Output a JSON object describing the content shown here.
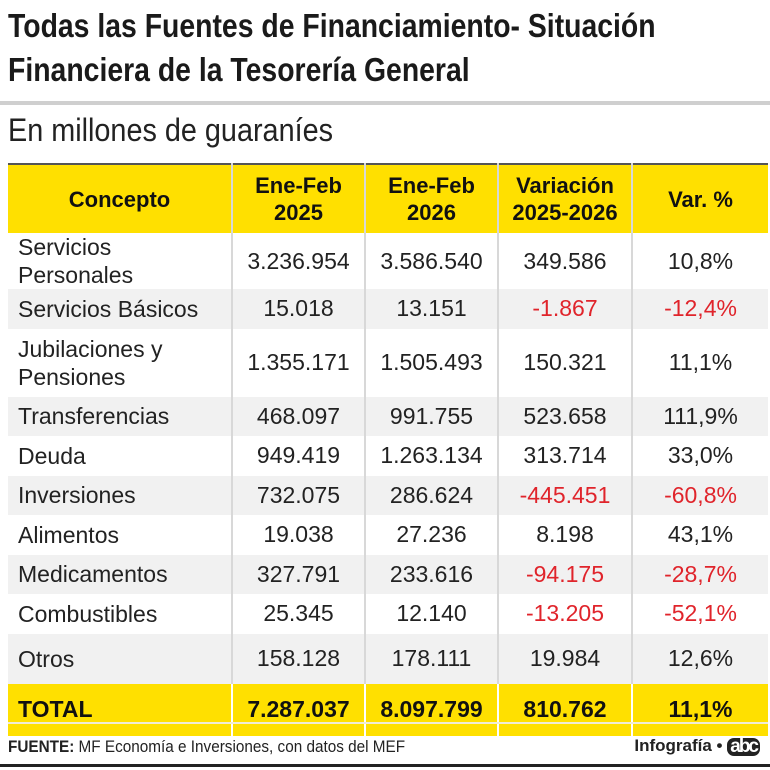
{
  "title_line1": "Todas las Fuentes de Financiamiento- Situación",
  "title_line2": "Financiera de la Tesorería General",
  "subtitle": "En millones de guaraníes",
  "headers": [
    {
      "l1": "Concepto",
      "l2": ""
    },
    {
      "l1": "Ene-Feb",
      "l2": "2025"
    },
    {
      "l1": "Ene-Feb",
      "l2": "2026"
    },
    {
      "l1": "Variación",
      "l2": "2025-2026"
    },
    {
      "l1": "Var. %",
      "l2": ""
    }
  ],
  "rows": [
    {
      "concepto": "Servicios Personales",
      "c1": "3.236.954",
      "c2": "3.586.540",
      "var": "349.586",
      "pct": "10,8%"
    },
    {
      "concepto": "Servicios Básicos",
      "c1": "15.018",
      "c2": "13.151",
      "var": "-1.867",
      "pct": "-12,4%"
    },
    {
      "concepto": "Jubilaciones y",
      "concepto2": "Pensiones",
      "c1": "1.355.171",
      "c2": "1.505.493",
      "var": "150.321",
      "pct": "11,1%"
    },
    {
      "concepto": "Transferencias",
      "c1": "468.097",
      "c2": "991.755",
      "var": "523.658",
      "pct": "111,9%"
    },
    {
      "concepto": "Deuda",
      "c1": "949.419",
      "c2": "1.263.134",
      "var": "313.714",
      "pct": "33,0%"
    },
    {
      "concepto": "Inversiones",
      "c1": "732.075",
      "c2": "286.624",
      "var": "-445.451",
      "pct": "-60,8%"
    },
    {
      "concepto": "Alimentos",
      "c1": "19.038",
      "c2": "27.236",
      "var": "8.198",
      "pct": "43,1%"
    },
    {
      "concepto": "Medicamentos",
      "c1": "327.791",
      "c2": "233.616",
      "var": "-94.175",
      "pct": "-28,7%"
    },
    {
      "concepto": "Combustibles",
      "c1": "25.345",
      "c2": "12.140",
      "var": "-13.205",
      "pct": "-52,1%"
    },
    {
      "concepto": "Otros",
      "c1": "158.128",
      "c2": "178.111",
      "var": "19.984",
      "pct": "12,6%"
    }
  ],
  "total": {
    "concepto": "TOTAL",
    "c1": "7.287.037",
    "c2": "8.097.799",
    "var": "810.762",
    "pct": "11,1%"
  },
  "footer": {
    "source_label": "FUENTE:",
    "source_text": " MF Economía e Inversiones, con datos del MEF",
    "credit": "Infografía •",
    "logo": "abc"
  },
  "colors": {
    "accent": "#ffe000",
    "negative": "#e0242b"
  }
}
